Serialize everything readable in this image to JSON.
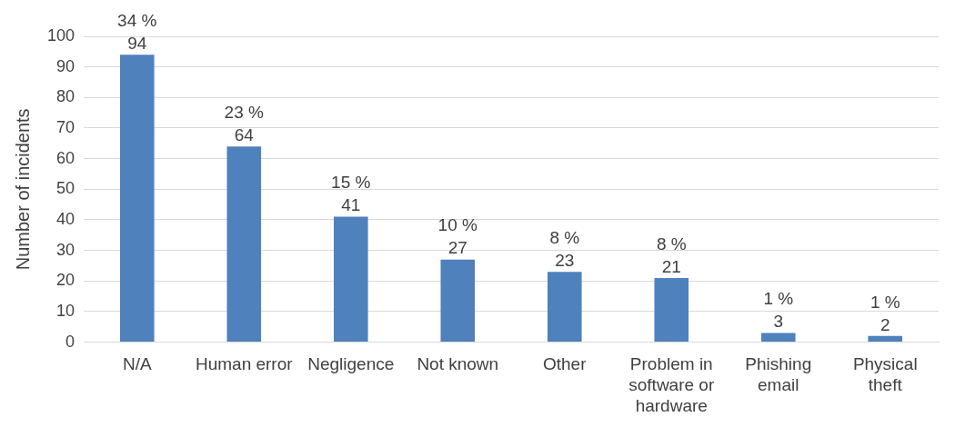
{
  "chart_data": {
    "type": "bar",
    "ylabel": "Number of incidents",
    "categories": [
      "N/A",
      "Human error",
      "Negligence",
      "Not known",
      "Other",
      "Problem in software or hardware",
      "Phishing email",
      "Physical theft"
    ],
    "values": [
      94,
      64,
      41,
      27,
      23,
      21,
      3,
      2
    ],
    "value_labels": [
      "34 %\n94",
      "23 %\n64",
      "15 %\n41",
      "10 %\n27",
      "8 %\n23",
      "8 %\n21",
      "1 %\n3",
      "1 %\n2"
    ],
    "color": "#4f81bd",
    "ylim": [
      0,
      100
    ],
    "yticks": [
      0,
      10,
      20,
      30,
      40,
      50,
      60,
      70,
      80,
      90,
      100
    ],
    "grid": "y",
    "legend": false
  }
}
